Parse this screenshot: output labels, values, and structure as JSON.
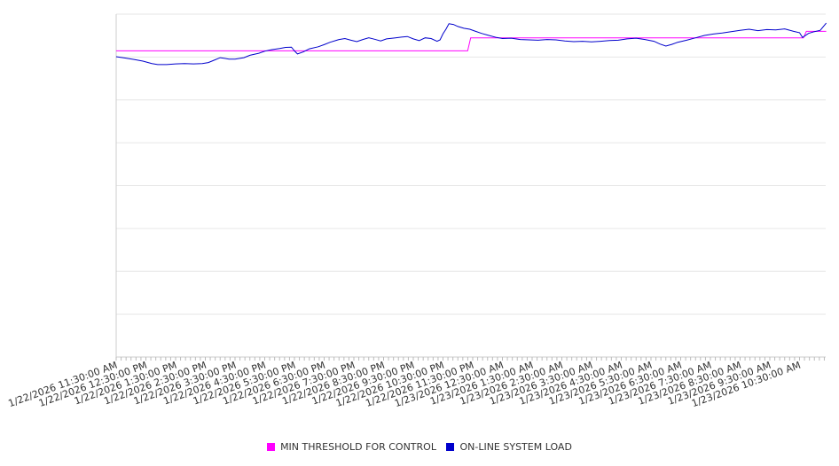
{
  "chart_data": {
    "type": "line",
    "ylim": [
      0,
      100
    ],
    "grid": true,
    "legend_placement": "bottom",
    "x_tick_labels": [
      "1/22/2026 11:30:00 AM",
      "1/22/2026 12:30:00 PM",
      "1/22/2026 1:30:00 PM",
      "1/22/2026 2:30:00 PM",
      "1/22/2026 3:30:00 PM",
      "1/22/2026 4:30:00 PM",
      "1/22/2026 5:30:00 PM",
      "1/22/2026 6:30:00 PM",
      "1/22/2026 7:30:00 PM",
      "1/22/2026 8:30:00 PM",
      "1/22/2026 9:30:00 PM",
      "1/22/2026 10:30:00 PM",
      "1/22/2026 11:30:00 PM",
      "1/23/2026 12:30:00 AM",
      "1/23/2026 1:30:00 AM",
      "1/23/2026 2:30:00 AM",
      "1/23/2026 3:30:00 AM",
      "1/23/2026 4:30:00 AM",
      "1/23/2026 5:30:00 AM",
      "1/23/2026 6:30:00 AM",
      "1/23/2026 7:30:00 AM",
      "1/23/2026 8:30:00 AM",
      "1/23/2026 9:30:00 AM",
      "1/23/2026 10:30:00 AM"
    ],
    "series": [
      {
        "name": "MIN THRESHOLD FOR CONTROL",
        "color": "#ff00ff",
        "values": [
          [
            0.0,
            89.3
          ],
          [
            11.83,
            89.3
          ],
          [
            11.93,
            93.1
          ],
          [
            23.13,
            93.1
          ],
          [
            23.23,
            95.0
          ],
          [
            23.9,
            95.0
          ]
        ]
      },
      {
        "name": "ON-LINE SYSTEM LOAD",
        "color": "#0000cc",
        "values": [
          [
            0.0,
            87.6
          ],
          [
            0.3,
            87.2
          ],
          [
            0.6,
            86.8
          ],
          [
            0.9,
            86.3
          ],
          [
            1.2,
            85.6
          ],
          [
            1.4,
            85.3
          ],
          [
            1.7,
            85.3
          ],
          [
            2.0,
            85.5
          ],
          [
            2.3,
            85.6
          ],
          [
            2.6,
            85.5
          ],
          [
            2.9,
            85.6
          ],
          [
            3.1,
            85.9
          ],
          [
            3.3,
            86.6
          ],
          [
            3.5,
            87.3
          ],
          [
            3.8,
            86.9
          ],
          [
            4.0,
            86.9
          ],
          [
            4.3,
            87.3
          ],
          [
            4.5,
            88.0
          ],
          [
            4.8,
            88.6
          ],
          [
            5.0,
            89.2
          ],
          [
            5.2,
            89.6
          ],
          [
            5.5,
            90.0
          ],
          [
            5.7,
            90.3
          ],
          [
            5.9,
            90.4
          ],
          [
            6.0,
            89.3
          ],
          [
            6.1,
            88.4
          ],
          [
            6.3,
            89.0
          ],
          [
            6.5,
            89.9
          ],
          [
            6.8,
            90.5
          ],
          [
            7.0,
            91.1
          ],
          [
            7.2,
            91.8
          ],
          [
            7.5,
            92.6
          ],
          [
            7.7,
            92.9
          ],
          [
            7.9,
            92.4
          ],
          [
            8.1,
            92.0
          ],
          [
            8.3,
            92.6
          ],
          [
            8.5,
            93.1
          ],
          [
            8.7,
            92.7
          ],
          [
            8.9,
            92.2
          ],
          [
            9.1,
            92.8
          ],
          [
            9.4,
            93.1
          ],
          [
            9.6,
            93.3
          ],
          [
            9.8,
            93.5
          ],
          [
            10.0,
            92.8
          ],
          [
            10.2,
            92.3
          ],
          [
            10.4,
            93.1
          ],
          [
            10.6,
            92.9
          ],
          [
            10.8,
            92.1
          ],
          [
            10.9,
            92.5
          ],
          [
            11.0,
            94.3
          ],
          [
            11.1,
            95.6
          ],
          [
            11.2,
            97.2
          ],
          [
            11.35,
            97.0
          ],
          [
            11.5,
            96.4
          ],
          [
            11.7,
            95.9
          ],
          [
            11.9,
            95.6
          ],
          [
            12.1,
            95.0
          ],
          [
            12.3,
            94.4
          ],
          [
            12.5,
            93.9
          ],
          [
            12.8,
            93.2
          ],
          [
            13.0,
            92.9
          ],
          [
            13.3,
            93.0
          ],
          [
            13.6,
            92.6
          ],
          [
            13.9,
            92.5
          ],
          [
            14.2,
            92.4
          ],
          [
            14.5,
            92.6
          ],
          [
            14.8,
            92.5
          ],
          [
            15.1,
            92.2
          ],
          [
            15.4,
            92.0
          ],
          [
            15.7,
            92.1
          ],
          [
            16.0,
            91.9
          ],
          [
            16.3,
            92.1
          ],
          [
            16.6,
            92.3
          ],
          [
            16.9,
            92.4
          ],
          [
            17.2,
            92.8
          ],
          [
            17.5,
            93.0
          ],
          [
            17.8,
            92.6
          ],
          [
            18.1,
            92.1
          ],
          [
            18.3,
            91.3
          ],
          [
            18.5,
            90.7
          ],
          [
            18.7,
            91.2
          ],
          [
            18.9,
            91.8
          ],
          [
            19.2,
            92.4
          ],
          [
            19.5,
            93.1
          ],
          [
            19.8,
            93.8
          ],
          [
            20.1,
            94.2
          ],
          [
            20.4,
            94.5
          ],
          [
            20.7,
            94.9
          ],
          [
            21.0,
            95.3
          ],
          [
            21.3,
            95.6
          ],
          [
            21.6,
            95.2
          ],
          [
            21.9,
            95.5
          ],
          [
            22.2,
            95.4
          ],
          [
            22.5,
            95.7
          ],
          [
            22.8,
            95.0
          ],
          [
            23.0,
            94.6
          ],
          [
            23.1,
            93.2
          ],
          [
            23.3,
            94.4
          ],
          [
            23.5,
            94.9
          ],
          [
            23.7,
            95.3
          ],
          [
            23.9,
            97.4
          ]
        ]
      }
    ]
  }
}
